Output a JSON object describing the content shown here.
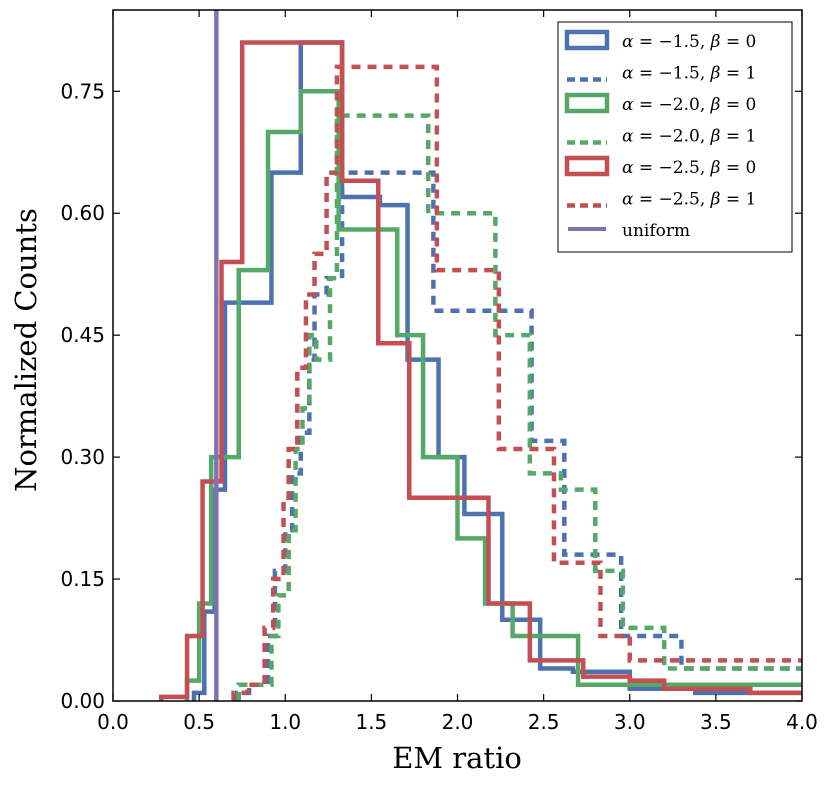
{
  "chart_data": {
    "type": "histogram-step",
    "xlabel": "EM ratio",
    "ylabel": "Normalized Counts",
    "xlim": [
      0.0,
      4.0
    ],
    "ylim": [
      0.0,
      0.85
    ],
    "xticks": [
      0.0,
      0.5,
      1.0,
      1.5,
      2.0,
      2.5,
      3.0,
      3.5,
      4.0
    ],
    "xtick_labels": [
      "0.0",
      "0.5",
      "1.0",
      "1.5",
      "2.0",
      "2.5",
      "3.0",
      "3.5",
      "4.0"
    ],
    "yticks": [
      0.0,
      0.15,
      0.3,
      0.45,
      0.6,
      0.75
    ],
    "ytick_labels": [
      "0.00",
      "0.15",
      "0.30",
      "0.45",
      "0.60",
      "0.75"
    ],
    "legend_position": "top-right",
    "colors": {
      "blue": "#4c72b0",
      "green": "#55a868",
      "red": "#c44e52",
      "purple": "#8172b2"
    },
    "series": [
      {
        "name": "α = −1.5, β = 0",
        "color": "#4c72b0",
        "style": "solid",
        "edges": [
          0.47,
          0.53,
          0.59,
          0.65,
          0.92,
          1.09,
          1.33,
          1.55,
          1.71,
          1.89,
          2.04,
          2.26,
          2.48,
          2.67,
          3.0,
          3.38,
          4.0
        ],
        "values": [
          0.01,
          0.11,
          0.26,
          0.49,
          0.65,
          0.81,
          0.62,
          0.61,
          0.42,
          0.3,
          0.23,
          0.1,
          0.04,
          0.036,
          0.015,
          0.01
        ]
      },
      {
        "name": "α = −1.5, β = 1",
        "color": "#4c72b0",
        "style": "dashed",
        "edges": [
          0.72,
          0.79,
          0.9,
          0.94,
          1.0,
          1.04,
          1.09,
          1.14,
          1.17,
          1.24,
          1.33,
          1.5,
          1.86,
          2.04,
          2.18,
          2.43,
          2.62,
          2.78,
          2.95,
          3.3,
          4.0
        ],
        "values": [
          0.01,
          0.02,
          0.08,
          0.16,
          0.21,
          0.28,
          0.33,
          0.42,
          0.5,
          0.52,
          0.65,
          0.65,
          0.48,
          0.48,
          0.48,
          0.32,
          0.18,
          0.18,
          0.08,
          0.04
        ]
      },
      {
        "name": "α = −2.0, β = 0",
        "color": "#55a868",
        "style": "solid",
        "edges": [
          0.43,
          0.5,
          0.57,
          0.73,
          0.9,
          1.09,
          1.31,
          1.52,
          1.65,
          1.8,
          2.0,
          2.16,
          2.32,
          2.7,
          3.0,
          3.3,
          4.0
        ],
        "values": [
          0.025,
          0.12,
          0.3,
          0.53,
          0.7,
          0.75,
          0.58,
          0.58,
          0.45,
          0.3,
          0.2,
          0.12,
          0.08,
          0.02,
          0.02,
          0.02
        ]
      },
      {
        "name": "α = −2.0, β = 1",
        "color": "#55a868",
        "style": "dashed",
        "edges": [
          0.73,
          0.8,
          0.92,
          0.96,
          1.02,
          1.06,
          1.1,
          1.14,
          1.18,
          1.26,
          1.3,
          1.42,
          1.83,
          2.06,
          2.22,
          2.42,
          2.6,
          2.8,
          2.96,
          3.2,
          4.0
        ],
        "values": [
          0.02,
          0.02,
          0.08,
          0.13,
          0.21,
          0.31,
          0.36,
          0.45,
          0.42,
          0.52,
          0.72,
          0.72,
          0.6,
          0.6,
          0.45,
          0.28,
          0.26,
          0.16,
          0.09,
          0.04
        ]
      },
      {
        "name": "α = −2.5, β = 0",
        "color": "#c44e52",
        "style": "solid",
        "edges": [
          0.28,
          0.43,
          0.52,
          0.63,
          0.75,
          1.08,
          1.33,
          1.54,
          1.72,
          1.97,
          2.18,
          2.42,
          2.73,
          3.0,
          3.2,
          3.7,
          4.0
        ],
        "values": [
          0.005,
          0.08,
          0.27,
          0.54,
          0.81,
          0.81,
          0.64,
          0.44,
          0.25,
          0.25,
          0.12,
          0.05,
          0.03,
          0.025,
          0.015,
          0.01
        ]
      },
      {
        "name": "α = −2.5, β = 1",
        "color": "#c44e52",
        "style": "dashed",
        "edges": [
          0.7,
          0.78,
          0.88,
          0.93,
          0.99,
          1.02,
          1.07,
          1.12,
          1.17,
          1.24,
          1.3,
          1.43,
          1.88,
          2.02,
          2.24,
          2.4,
          2.56,
          2.7,
          2.83,
          3.0,
          4.0
        ],
        "values": [
          0.01,
          0.02,
          0.09,
          0.15,
          0.25,
          0.31,
          0.41,
          0.5,
          0.55,
          0.65,
          0.78,
          0.78,
          0.53,
          0.53,
          0.31,
          0.31,
          0.17,
          0.17,
          0.08,
          0.05
        ]
      },
      {
        "name": "uniform",
        "color": "#8172b2",
        "style": "vline",
        "x": 0.6
      }
    ]
  },
  "legend": {
    "entries": [
      {
        "math": "α = −1.5, β = 0",
        "label_alpha": "α",
        "alpha_val": "−1.5",
        "label_beta": "β",
        "beta_val": "0",
        "color": "#4c72b0",
        "style": "solid"
      },
      {
        "math": "α = −1.5, β = 1",
        "label_alpha": "α",
        "alpha_val": "−1.5",
        "label_beta": "β",
        "beta_val": "1",
        "color": "#4c72b0",
        "style": "dashed"
      },
      {
        "math": "α = −2.0, β = 0",
        "label_alpha": "α",
        "alpha_val": "−2.0",
        "label_beta": "β",
        "beta_val": "0",
        "color": "#55a868",
        "style": "solid"
      },
      {
        "math": "α = −2.0, β = 1",
        "label_alpha": "α",
        "alpha_val": "−2.0",
        "label_beta": "β",
        "beta_val": "1",
        "color": "#55a868",
        "style": "dashed"
      },
      {
        "math": "α = −2.5, β = 0",
        "label_alpha": "α",
        "alpha_val": "−2.5",
        "label_beta": "β",
        "beta_val": "0",
        "color": "#c44e52",
        "style": "solid"
      },
      {
        "math": "α = −2.5, β = 1",
        "label_alpha": "α",
        "alpha_val": "−2.5",
        "label_beta": "β",
        "beta_val": "1",
        "color": "#c44e52",
        "style": "dashed"
      },
      {
        "math": "uniform",
        "color": "#8172b2",
        "style": "vline"
      }
    ]
  }
}
